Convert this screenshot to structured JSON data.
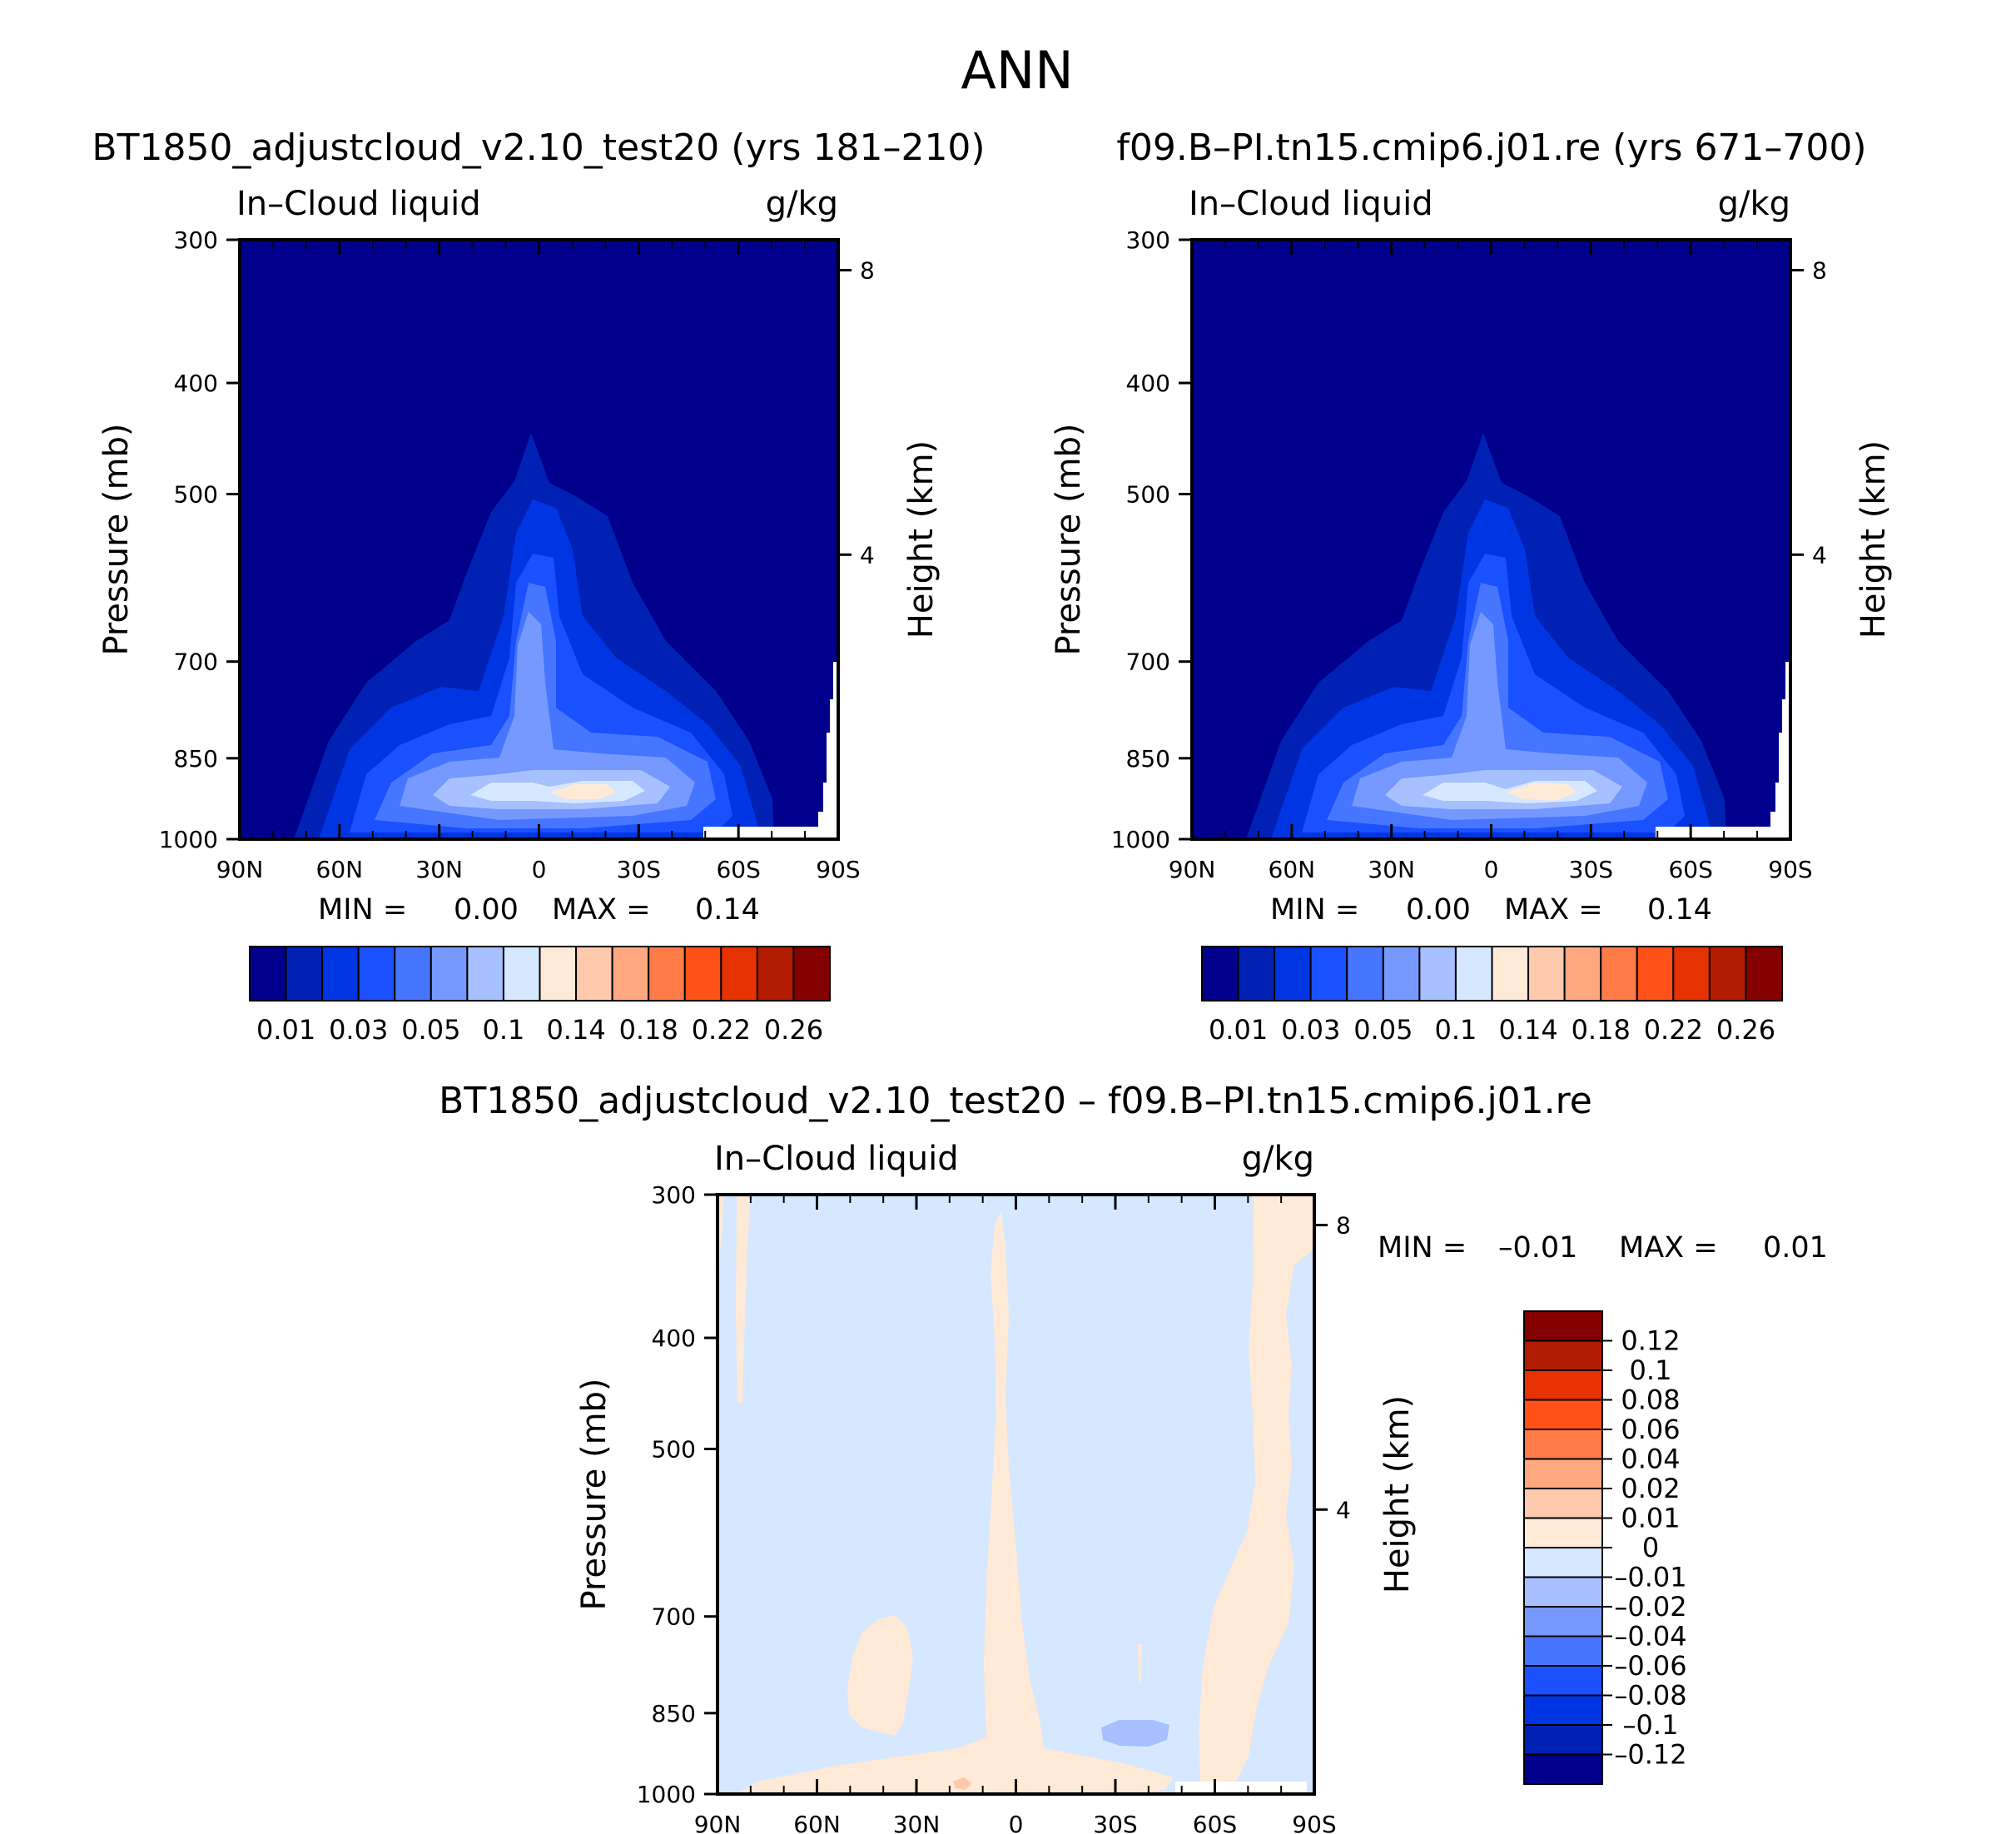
{
  "figure_title": "ANN",
  "colors": {
    "abs_levels": [
      "#00008c",
      "#0021b4",
      "#0035e3",
      "#1b50ff",
      "#4676ff",
      "#7699ff",
      "#a7c0ff",
      "#d5e8ff",
      "#ffe9d7",
      "#ffc9ad",
      "#ffa77f",
      "#ff7b47",
      "#ff5118",
      "#e53200",
      "#b21c00",
      "#850000"
    ],
    "diff_levels": [
      "#00008c",
      "#0021b4",
      "#0035e3",
      "#1b50ff",
      "#4676ff",
      "#7699ff",
      "#a7c0ff",
      "#d5e8ff",
      "#ffe9d7",
      "#ffc9ad",
      "#ffa77f",
      "#ff7b47",
      "#ff5118",
      "#e53200",
      "#b21c00",
      "#850000"
    ]
  },
  "chart_data": [
    {
      "id": "panel_test",
      "type": "contour",
      "title": "BT1850_adjustcloud_v2.10_test20 (yrs 181–210)",
      "left_label": "In–Cloud liquid",
      "right_label": "g/kg",
      "xlabel": "",
      "ylabel": "Pressure (mb)",
      "y2label": "Height (km)",
      "x_ticks": [
        "90N",
        "60N",
        "30N",
        "0",
        "30S",
        "60S",
        "90S"
      ],
      "y_ticks": [
        "300",
        "400",
        "500",
        "700",
        "850",
        "1000"
      ],
      "y_tick_values": [
        300,
        400,
        500,
        700,
        850,
        1000
      ],
      "y2_ticks": [
        "8",
        "4"
      ],
      "ylim": [
        1000,
        300
      ],
      "min_label": "MIN =",
      "min_value": "0.00",
      "max_label": "MAX =",
      "max_value": "0.14",
      "colorbar_ticks": [
        "0.01",
        "0.03",
        "0.05",
        "0.1",
        "0.14",
        "0.18",
        "0.22",
        "0.26"
      ]
    },
    {
      "id": "panel_ctrl",
      "type": "contour",
      "title": "f09.B–PI.tn15.cmip6.j01.re (yrs 671–700)",
      "left_label": "In–Cloud liquid",
      "right_label": "g/kg",
      "xlabel": "",
      "ylabel": "Pressure (mb)",
      "y2label": "Height (km)",
      "x_ticks": [
        "90N",
        "60N",
        "30N",
        "0",
        "30S",
        "60S",
        "90S"
      ],
      "y_ticks": [
        "300",
        "400",
        "500",
        "700",
        "850",
        "1000"
      ],
      "y_tick_values": [
        300,
        400,
        500,
        700,
        850,
        1000
      ],
      "y2_ticks": [
        "8",
        "4"
      ],
      "ylim": [
        1000,
        300
      ],
      "min_label": "MIN =",
      "min_value": "0.00",
      "max_label": "MAX =",
      "max_value": "0.14",
      "colorbar_ticks": [
        "0.01",
        "0.03",
        "0.05",
        "0.1",
        "0.14",
        "0.18",
        "0.22",
        "0.26"
      ]
    },
    {
      "id": "panel_diff",
      "type": "contour",
      "title": "BT1850_adjustcloud_v2.10_test20 – f09.B–PI.tn15.cmip6.j01.re",
      "left_label": "In–Cloud liquid",
      "right_label": "g/kg",
      "xlabel": "",
      "ylabel": "Pressure (mb)",
      "y2label": "Height (km)",
      "x_ticks": [
        "90N",
        "60N",
        "30N",
        "0",
        "30S",
        "60S",
        "90S"
      ],
      "y_ticks": [
        "300",
        "400",
        "500",
        "700",
        "850",
        "1000"
      ],
      "y_tick_values": [
        300,
        400,
        500,
        700,
        850,
        1000
      ],
      "y2_ticks": [
        "8",
        "4"
      ],
      "ylim": [
        1000,
        300
      ],
      "min_label": "MIN =",
      "min_value": "–0.01",
      "max_label": "MAX =",
      "max_value": "0.01",
      "colorbar_ticks": [
        "0.12",
        "0.1",
        "0.08",
        "0.06",
        "0.04",
        "0.02",
        "0.01",
        "0",
        "–0.01",
        "–0.02",
        "–0.04",
        "–0.06",
        "–0.08",
        "–0.1",
        "–0.12"
      ]
    }
  ]
}
